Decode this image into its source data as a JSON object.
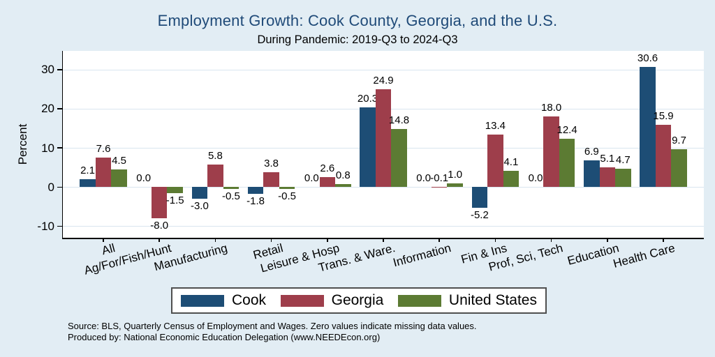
{
  "footnotes": [
    "Source: BLS, Quarterly Census of Employment and Wages. Zero values indicate missing data values.",
    "Produced by: National Economic Education Delegation (www.NEEDEcon.org)"
  ],
  "colors": {
    "background": "#e2edf4",
    "plot_background": "#ffffff",
    "gridline": "#d9e5ef",
    "title": "#1f4a78",
    "axis": "#000000",
    "legend_border": "#4f4f4f"
  },
  "chart_data": {
    "type": "bar",
    "title": "Employment Growth: Cook County, Georgia, and the U.S.",
    "subtitle": "During Pandemic: 2019-Q3 to 2024-Q3",
    "xlabel": "",
    "ylabel": "Percent",
    "ylim": [
      -13,
      35
    ],
    "yticks": [
      -10,
      0,
      10,
      20,
      30
    ],
    "grid": true,
    "legend_position": "bottom",
    "value_label_decimals": 1,
    "categories": [
      "All",
      "Ag/For/Fish/Hunt",
      "Manufacturing",
      "Retail",
      "Leisure & Hosp",
      "Trans. & Ware.",
      "Information",
      "Fin & Ins",
      "Prof, Sci, Tech",
      "Education",
      "Health Care"
    ],
    "series": [
      {
        "name": "Cook",
        "color": "#1d4d75",
        "values": [
          2.1,
          0.0,
          -3.0,
          -1.8,
          0.0,
          20.3,
          0.0,
          -5.2,
          0.0,
          6.9,
          30.6
        ]
      },
      {
        "name": "Georgia",
        "color": "#9e3e4b",
        "values": [
          7.6,
          -8.0,
          5.8,
          3.8,
          2.6,
          24.9,
          -0.1,
          13.4,
          18.0,
          5.1,
          15.9
        ]
      },
      {
        "name": "United States",
        "color": "#5c7b33",
        "values": [
          4.5,
          -1.5,
          -0.5,
          -0.5,
          0.8,
          14.8,
          1.0,
          4.1,
          12.4,
          4.7,
          9.7
        ]
      }
    ]
  }
}
